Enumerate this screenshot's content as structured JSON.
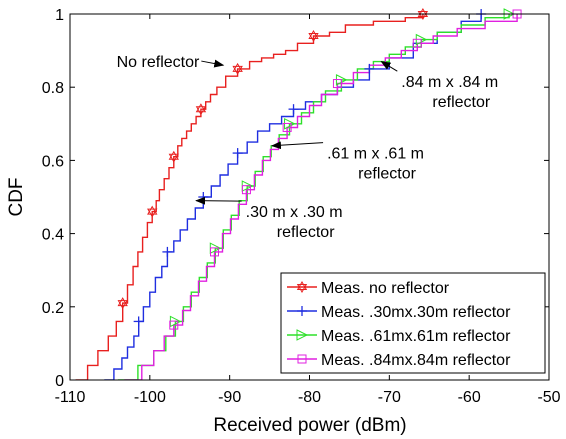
{
  "chart_data": {
    "type": "line",
    "title": "",
    "xlabel": "Received power (dBm)",
    "ylabel": "CDF",
    "xlim": [
      -110,
      -50
    ],
    "ylim": [
      0,
      1
    ],
    "xticks": [
      -110,
      -100,
      -90,
      -80,
      -70,
      -60,
      -50
    ],
    "yticks": [
      0,
      0.2,
      0.4,
      0.6,
      0.8,
      1
    ],
    "xtick_labels": [
      "-110",
      "-100",
      "-90",
      "-80",
      "-70",
      "-60",
      "-50"
    ],
    "ytick_labels": [
      "0",
      "0.2",
      "0.4",
      "0.6",
      "0.8",
      "1"
    ],
    "grid": false,
    "legend_position": "bottom-right",
    "series": [
      {
        "name": "Meas. no reflector",
        "color": "#e8201f",
        "marker": "hexagram",
        "x": [
          -109.3,
          -107.8,
          -106.5,
          -105.2,
          -104.2,
          -103.4,
          -102.8,
          -102.1,
          -101.5,
          -100.9,
          -100.3,
          -99.7,
          -99.2,
          -98.8,
          -98.2,
          -97.6,
          -97.0,
          -96.5,
          -96.0,
          -95.4,
          -94.8,
          -94.2,
          -93.6,
          -93.0,
          -92.4,
          -91.6,
          -90.5,
          -89.0,
          -87.5,
          -86.0,
          -84.5,
          -83.0,
          -81.5,
          -79.5,
          -77.5,
          -75.5,
          -72.0,
          -68.0,
          -65.8
        ],
        "y": [
          0,
          0.04,
          0.08,
          0.12,
          0.16,
          0.21,
          0.26,
          0.31,
          0.35,
          0.39,
          0.43,
          0.46,
          0.49,
          0.52,
          0.55,
          0.58,
          0.61,
          0.64,
          0.66,
          0.68,
          0.7,
          0.72,
          0.74,
          0.76,
          0.78,
          0.8,
          0.83,
          0.85,
          0.87,
          0.88,
          0.89,
          0.9,
          0.92,
          0.94,
          0.95,
          0.97,
          0.98,
          0.99,
          1.0
        ]
      },
      {
        "name": "Meas. .30mx.30m reflector",
        "color": "#1f2ee0",
        "marker": "plus",
        "x": [
          -105.7,
          -104.5,
          -103.5,
          -102.8,
          -102.0,
          -101.4,
          -100.8,
          -100.0,
          -99.3,
          -98.5,
          -97.8,
          -97.0,
          -96.2,
          -95.3,
          -94.3,
          -93.3,
          -92.3,
          -91.2,
          -90.2,
          -89.0,
          -87.8,
          -86.5,
          -85.0,
          -83.5,
          -82.0,
          -80.5,
          -78.5,
          -76.5,
          -74.5,
          -72.5,
          -70.0,
          -67.0,
          -64.0,
          -61.0,
          -58.5
        ],
        "y": [
          0,
          0.03,
          0.06,
          0.09,
          0.12,
          0.16,
          0.2,
          0.24,
          0.28,
          0.31,
          0.35,
          0.38,
          0.41,
          0.44,
          0.47,
          0.5,
          0.53,
          0.56,
          0.59,
          0.62,
          0.65,
          0.68,
          0.7,
          0.72,
          0.74,
          0.76,
          0.78,
          0.8,
          0.82,
          0.85,
          0.88,
          0.92,
          0.95,
          0.98,
          1.0
        ]
      },
      {
        "name": "Meas. .61mx.61m reflector",
        "color": "#2ee02a",
        "marker": "triangle-right",
        "x": [
          -104.0,
          -101.5,
          -99.5,
          -98.0,
          -96.8,
          -95.8,
          -94.8,
          -93.8,
          -92.8,
          -91.8,
          -90.8,
          -89.8,
          -88.8,
          -87.8,
          -86.8,
          -85.8,
          -84.8,
          -83.8,
          -82.5,
          -81.0,
          -79.5,
          -78.0,
          -76.0,
          -74.0,
          -72.0,
          -70.0,
          -68.0,
          -66.0,
          -64.0,
          -61.0,
          -58.0,
          -55.0
        ],
        "y": [
          0,
          0.04,
          0.08,
          0.12,
          0.16,
          0.2,
          0.24,
          0.28,
          0.32,
          0.36,
          0.41,
          0.45,
          0.49,
          0.53,
          0.57,
          0.61,
          0.64,
          0.67,
          0.7,
          0.73,
          0.76,
          0.79,
          0.82,
          0.85,
          0.87,
          0.89,
          0.91,
          0.93,
          0.95,
          0.97,
          0.99,
          1.0
        ]
      },
      {
        "name": "Meas. .84mx.84m reflector",
        "color": "#e020e0",
        "marker": "square",
        "x": [
          -103.2,
          -101.0,
          -99.5,
          -98.2,
          -97.0,
          -95.9,
          -94.9,
          -93.9,
          -92.9,
          -91.9,
          -90.9,
          -89.9,
          -88.9,
          -87.9,
          -86.9,
          -85.9,
          -84.9,
          -83.9,
          -82.8,
          -81.5,
          -80.0,
          -78.5,
          -76.5,
          -74.5,
          -72.5,
          -70.5,
          -68.5,
          -66.5,
          -64.5,
          -61.5,
          -58.0,
          -54.0
        ],
        "y": [
          0,
          0.04,
          0.08,
          0.12,
          0.15,
          0.19,
          0.23,
          0.27,
          0.31,
          0.35,
          0.4,
          0.44,
          0.48,
          0.52,
          0.56,
          0.6,
          0.63,
          0.66,
          0.69,
          0.72,
          0.75,
          0.78,
          0.81,
          0.84,
          0.86,
          0.88,
          0.9,
          0.92,
          0.94,
          0.96,
          0.98,
          1.0
        ]
      }
    ],
    "annotations": [
      {
        "lines": [
          "No reflector"
        ],
        "text_x": -93.8,
        "text_y": 0.855,
        "arrow_x": -90.8,
        "arrow_y": 0.86,
        "anchor": "end"
      },
      {
        "lines": [
          ".84 m x .84 m",
          "reflector"
        ],
        "text_x": -68.5,
        "text_y": 0.8,
        "arrow_x": -71.0,
        "arrow_y": 0.87,
        "anchor": "start"
      },
      {
        "lines": [
          ".61 m x .61 m",
          "reflector"
        ],
        "text_x": -77.8,
        "text_y": 0.605,
        "arrow_x": -84.7,
        "arrow_y": 0.64,
        "anchor": "start"
      },
      {
        "lines": [
          ".30 m x .30 m",
          "reflector"
        ],
        "text_x": -88.0,
        "text_y": 0.445,
        "arrow_x": -94.2,
        "arrow_y": 0.49,
        "anchor": "start"
      }
    ]
  }
}
